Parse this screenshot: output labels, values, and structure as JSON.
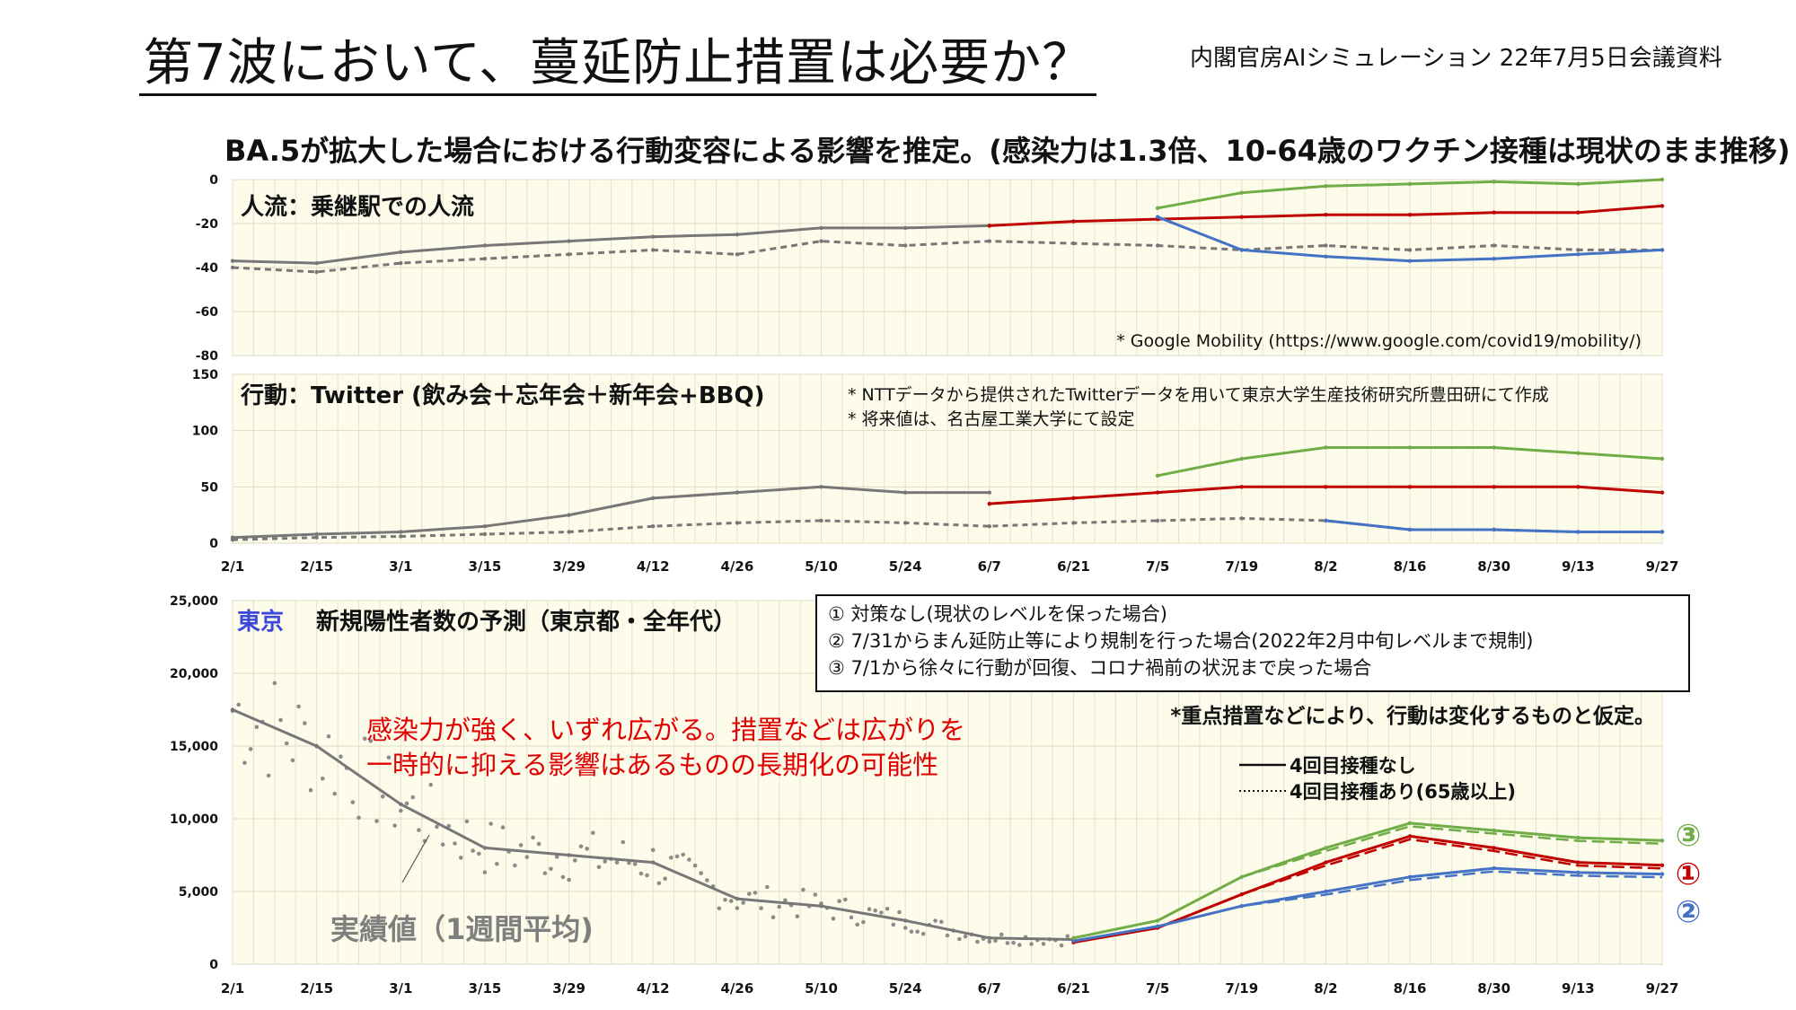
{
  "header": {
    "title": "第7波において、蔓延防止措置は必要か？",
    "source_note": "内閣官房AIシミュレーション 22年7月5日会議資料",
    "subtitle": "BA.5が拡大した場合における行動変容による影響を推定。(感染力は1.3倍、10-64歳のワクチン接種は現状のまま推移)"
  },
  "colors": {
    "actual": "#777777",
    "scenario1": "#c00000",
    "scenario2": "#4472c4",
    "scenario3": "#70ad47",
    "panel_bg": "#fdfbea",
    "accent_red": "#e00000",
    "tokyo_blue": "#3b47d8"
  },
  "x_axis_labels": [
    "2/1",
    "2/15",
    "3/1",
    "3/15",
    "3/29",
    "4/12",
    "4/26",
    "5/10",
    "5/24",
    "6/7",
    "6/21",
    "7/5",
    "7/19",
    "8/2",
    "8/16",
    "8/30",
    "9/13",
    "9/27"
  ],
  "mobility_panel": {
    "title": "人流：乗継駅での人流",
    "source": "* Google Mobility (https://www.google.com/covid19/mobility/)",
    "y_ticks": [
      "0",
      "-20",
      "-40",
      "-60",
      "-80"
    ]
  },
  "twitter_panel": {
    "title": "行動：Twitter (飲み会＋忘年会＋新年会+BBQ)",
    "note1": "* NTTデータから提供されたTwitterデータを用いて東京大学生産技術研究所豊田研にて作成",
    "note2": "* 将来値は、名古屋工業大学にて設定",
    "y_ticks": [
      "150",
      "100",
      "50",
      "0"
    ]
  },
  "cases_panel": {
    "region": "東京",
    "title": "新規陽性者数の予測（東京都・全年代）",
    "y_ticks": [
      "25,000",
      "20,000",
      "15,000",
      "10,000",
      "5,000",
      "0"
    ],
    "annotation_line1": "感染力が強く、いずれ広がる。措置などは広がりを",
    "annotation_line2": "一時的に抑える影響はあるものの長期化の可能性",
    "actual_label": "実績値（1週間平均)",
    "assumption": "*重点措置などにより、行動は変化するものと仮定。",
    "legend_solid": "4回目接種なし",
    "legend_dotted": "4回目接種あり(65歳以上)",
    "scenarios": [
      {
        "marker": "①",
        "text": "① 対策なし(現状のレベルを保った場合)"
      },
      {
        "marker": "②",
        "text": "② 7/31からまん延防止等により規制を行った場合(2022年2月中旬レベルまで規制)"
      },
      {
        "marker": "③",
        "text": "③ 7/1から徐々に行動が回復、コロナ禍前の状況まで戻った場合"
      }
    ],
    "end_markers": [
      "③",
      "①",
      "②"
    ]
  },
  "chart_data": [
    {
      "type": "line",
      "title": "人流：乗継駅での人流",
      "x": [
        "2/1",
        "2/15",
        "3/1",
        "3/15",
        "3/29",
        "4/12",
        "4/26",
        "5/10",
        "5/24",
        "6/7",
        "6/21",
        "7/5",
        "7/19",
        "8/2",
        "8/16",
        "8/30",
        "9/13",
        "9/27"
      ],
      "ylim": [
        -80,
        0
      ],
      "series": [
        {
          "values": [
            -37,
            -38,
            -33,
            -30,
            -28,
            -26,
            -25,
            -22,
            -22,
            -21,
            null,
            null,
            null,
            null,
            null,
            null,
            null,
            null
          ]
        },
        {
          "values": [
            -40,
            -42,
            -38,
            -36,
            -34,
            -32,
            -34,
            -28,
            -30,
            -28,
            -29,
            -30,
            -32,
            -30,
            -32,
            -30,
            -32,
            -32
          ]
        },
        {
          "values": [
            null,
            null,
            null,
            null,
            null,
            null,
            null,
            null,
            null,
            -21,
            -19,
            -18,
            -17,
            -16,
            -16,
            -15,
            -15,
            -12
          ]
        },
        {
          "values": [
            null,
            null,
            null,
            null,
            null,
            null,
            null,
            null,
            null,
            null,
            null,
            -17,
            -32,
            -35,
            -37,
            -36,
            -34,
            -32
          ]
        },
        {
          "values": [
            null,
            null,
            null,
            null,
            null,
            null,
            null,
            null,
            null,
            null,
            null,
            -13,
            -6,
            -3,
            -2,
            -1,
            -2,
            0
          ]
        }
      ],
      "grid": true
    },
    {
      "type": "line",
      "title": "行動：Twitter (飲み会＋忘年会＋新年会+BBQ)",
      "x": [
        "2/1",
        "2/15",
        "3/1",
        "3/15",
        "3/29",
        "4/12",
        "4/26",
        "5/10",
        "5/24",
        "6/7",
        "6/21",
        "7/5",
        "7/19",
        "8/2",
        "8/16",
        "8/30",
        "9/13",
        "9/27"
      ],
      "ylim": [
        0,
        150
      ],
      "series": [
        {
          "values": [
            5,
            8,
            10,
            15,
            25,
            40,
            45,
            50,
            45,
            45,
            null,
            null,
            null,
            null,
            null,
            null,
            null,
            null
          ]
        },
        {
          "values": [
            3,
            5,
            6,
            8,
            10,
            15,
            18,
            20,
            18,
            15,
            18,
            20,
            22,
            20,
            12,
            12,
            10,
            10
          ]
        },
        {
          "values": [
            null,
            null,
            null,
            null,
            null,
            null,
            null,
            null,
            null,
            35,
            40,
            45,
            50,
            50,
            50,
            50,
            50,
            45
          ]
        },
        {
          "values": [
            null,
            null,
            null,
            null,
            null,
            null,
            null,
            null,
            null,
            null,
            null,
            null,
            null,
            20,
            12,
            12,
            10,
            10
          ]
        },
        {
          "values": [
            null,
            null,
            null,
            null,
            null,
            null,
            null,
            null,
            null,
            null,
            null,
            60,
            75,
            85,
            85,
            85,
            80,
            75
          ]
        }
      ],
      "grid": true
    },
    {
      "type": "line",
      "title": "新規陽性者数の予測（東京都・全年代）",
      "x": [
        "2/1",
        "2/15",
        "3/1",
        "3/15",
        "3/29",
        "4/12",
        "4/26",
        "5/10",
        "5/24",
        "6/7",
        "6/21",
        "7/5",
        "7/19",
        "8/2",
        "8/16",
        "8/30",
        "9/13",
        "9/27"
      ],
      "ylim": [
        0,
        25000
      ],
      "series": [
        {
          "name": "実績値（1週間平均)",
          "values": [
            17500,
            15000,
            11000,
            8000,
            7500,
            7000,
            4500,
            4000,
            3000,
            1800,
            1700,
            null,
            null,
            null,
            null,
            null,
            null,
            null
          ]
        },
        {
          "name": "①",
          "values": [
            null,
            null,
            null,
            null,
            null,
            null,
            null,
            null,
            null,
            null,
            1500,
            2500,
            4800,
            7000,
            8800,
            8000,
            7000,
            6800
          ]
        },
        {
          "name": "②",
          "values": [
            null,
            null,
            null,
            null,
            null,
            null,
            null,
            null,
            null,
            null,
            1600,
            2600,
            4000,
            5000,
            6000,
            6600,
            6300,
            6200
          ]
        },
        {
          "name": "③",
          "values": [
            null,
            null,
            null,
            null,
            null,
            null,
            null,
            null,
            null,
            null,
            1800,
            3000,
            6000,
            8000,
            9700,
            9200,
            8700,
            8500
          ]
        }
      ],
      "grid": true
    }
  ]
}
